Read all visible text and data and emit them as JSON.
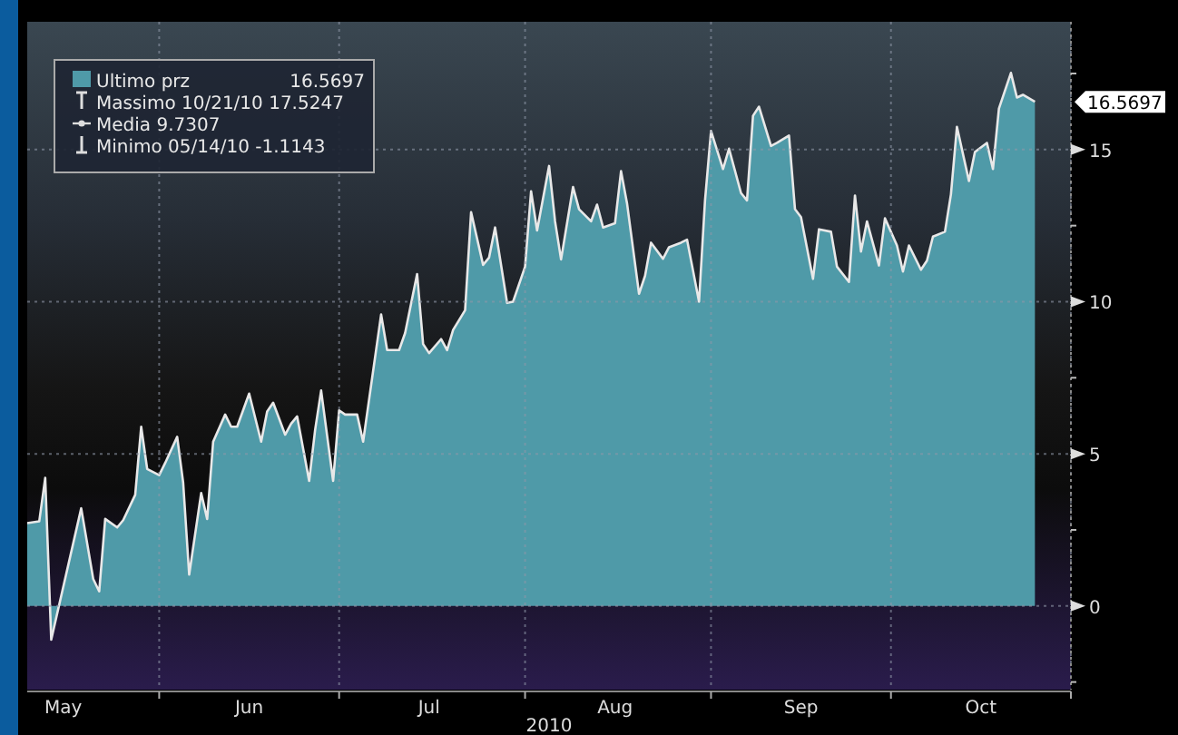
{
  "chart_data": {
    "type": "area",
    "xlabel": "2010",
    "legend": "top left",
    "grid": true,
    "marker": "none",
    "line_style": "solid",
    "xlim": [
      "2010-05-10",
      "2010-10-31"
    ],
    "xticks": [
      {
        "value": "2010-06-01",
        "label": null
      },
      {
        "value": "2010-07-01",
        "label": null
      },
      {
        "value": "2010-08-01",
        "label": null
      },
      {
        "value": "2010-09-01",
        "label": null
      },
      {
        "value": "2010-10-01",
        "label": null
      },
      {
        "value": "2010-10-31",
        "label": null
      },
      {
        "value": "2010-05-16",
        "label": "May"
      },
      {
        "value": "2010-06-16",
        "label": "Jun"
      },
      {
        "value": "2010-07-16",
        "label": "Jul"
      },
      {
        "value": "2010-08-16",
        "label": "Aug"
      },
      {
        "value": "2010-09-16",
        "label": "Sep"
      },
      {
        "value": "2010-10-16",
        "label": "Oct"
      }
    ],
    "ylim": [
      -2.75,
      19.2
    ],
    "yticks": [
      {
        "value": -2.5,
        "label": null
      },
      0,
      {
        "value": 2.5,
        "label": null
      },
      5,
      {
        "value": 7.5,
        "label": null
      },
      10,
      {
        "value": 12.5,
        "label": null
      },
      15,
      {
        "value": 17.5,
        "label": null
      }
    ],
    "x": [
      "2010-05-10",
      "2010-05-12",
      "2010-05-13",
      "2010-05-14",
      "2010-05-19",
      "2010-05-21",
      "2010-05-22",
      "2010-05-23",
      "2010-05-25",
      "2010-05-26",
      "2010-05-28",
      "2010-05-29",
      "2010-05-30",
      "2010-06-01",
      "2010-06-02",
      "2010-06-04",
      "2010-06-05",
      "2010-06-06",
      "2010-06-08",
      "2010-06-09",
      "2010-06-10",
      "2010-06-12",
      "2010-06-13",
      "2010-06-14",
      "2010-06-16",
      "2010-06-18",
      "2010-06-19",
      "2010-06-20",
      "2010-06-22",
      "2010-06-23",
      "2010-06-24",
      "2010-06-26",
      "2010-06-27",
      "2010-06-28",
      "2010-06-30",
      "2010-07-01",
      "2010-07-02",
      "2010-07-04",
      "2010-07-05",
      "2010-07-08",
      "2010-07-09",
      "2010-07-11",
      "2010-07-12",
      "2010-07-14",
      "2010-07-15",
      "2010-07-16",
      "2010-07-18",
      "2010-07-19",
      "2010-07-20",
      "2010-07-22",
      "2010-07-23",
      "2010-07-25",
      "2010-07-26",
      "2010-07-27",
      "2010-07-29",
      "2010-07-30",
      "2010-08-01",
      "2010-08-02",
      "2010-08-03",
      "2010-08-05",
      "2010-08-06",
      "2010-08-07",
      "2010-08-09",
      "2010-08-10",
      "2010-08-12",
      "2010-08-13",
      "2010-08-14",
      "2010-08-16",
      "2010-08-17",
      "2010-08-18",
      "2010-08-20",
      "2010-08-21",
      "2010-08-22",
      "2010-08-24",
      "2010-08-25",
      "2010-08-27",
      "2010-08-28",
      "2010-08-30",
      "2010-08-31",
      "2010-09-01",
      "2010-09-03",
      "2010-09-04",
      "2010-09-06",
      "2010-09-07",
      "2010-09-08",
      "2010-09-09",
      "2010-09-11",
      "2010-09-12",
      "2010-09-14",
      "2010-09-15",
      "2010-09-16",
      "2010-09-18",
      "2010-09-19",
      "2010-09-21",
      "2010-09-22",
      "2010-09-24",
      "2010-09-25",
      "2010-09-26",
      "2010-09-27",
      "2010-09-29",
      "2010-09-30",
      "2010-10-02",
      "2010-10-03",
      "2010-10-04",
      "2010-10-06",
      "2010-10-07",
      "2010-10-08",
      "2010-10-10",
      "2010-10-11",
      "2010-10-12",
      "2010-10-14",
      "2010-10-15",
      "2010-10-17",
      "2010-10-18",
      "2010-10-19",
      "2010-10-21",
      "2010-10-22",
      "2010-10-23",
      "2010-10-25"
    ],
    "series": [
      {
        "name": "Ultimo prz",
        "color": "#4f9aa8",
        "values": [
          2.72,
          2.78,
          4.21,
          -1.11,
          3.21,
          0.89,
          0.48,
          2.86,
          2.58,
          2.82,
          3.65,
          5.89,
          4.5,
          4.3,
          4.7,
          5.56,
          4.05,
          1.03,
          3.71,
          2.86,
          5.4,
          6.29,
          5.89,
          5.89,
          6.98,
          5.4,
          6.39,
          6.68,
          5.63,
          5.99,
          6.23,
          4.11,
          5.79,
          7.08,
          4.11,
          6.43,
          6.29,
          6.29,
          5.4,
          9.58,
          8.41,
          8.41,
          8.97,
          10.91,
          8.61,
          8.31,
          8.77,
          8.41,
          9.07,
          9.72,
          12.94,
          11.21,
          11.45,
          12.44,
          9.96,
          10.0,
          11.15,
          13.63,
          12.34,
          14.46,
          12.64,
          11.39,
          13.77,
          13.04,
          12.64,
          13.19,
          12.44,
          12.58,
          14.29,
          13.23,
          10.26,
          10.85,
          11.94,
          11.41,
          11.79,
          11.94,
          12.04,
          10.0,
          13.33,
          15.61,
          14.36,
          15.03,
          13.57,
          13.33,
          16.11,
          16.41,
          15.12,
          15.22,
          15.46,
          13.04,
          12.78,
          10.75,
          12.38,
          12.3,
          11.15,
          10.65,
          13.49,
          11.65,
          12.64,
          11.19,
          12.74,
          11.85,
          10.99,
          11.85,
          11.05,
          11.35,
          12.14,
          12.3,
          13.53,
          15.75,
          13.97,
          14.92,
          15.22,
          14.36,
          16.35,
          17.52,
          16.71,
          16.8,
          16.57
        ]
      }
    ],
    "annotations": [
      "16.5697",
      "Massimo 10/21/10 17.5247",
      "Media 9.7307",
      "Minimo 05/14/10 -1.1143",
      "16.5697"
    ]
  }
}
